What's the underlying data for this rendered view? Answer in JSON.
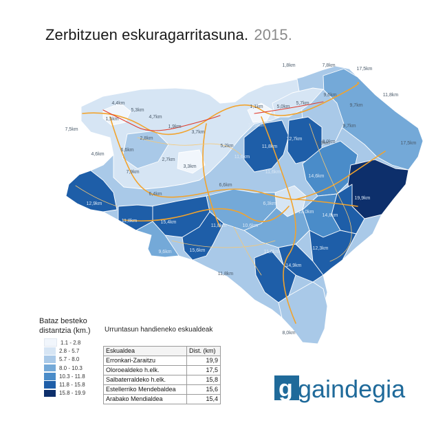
{
  "title": {
    "main": "Zerbitzuen eskuragarritasuna.",
    "year": "2015."
  },
  "legend": {
    "title_line1": "Bataz besteko",
    "title_line2": "distantzia (km.)",
    "items": [
      {
        "range": "1.1 - 2.8",
        "color": "#f1f6fc"
      },
      {
        "range": "2.8 - 5.7",
        "color": "#d6e5f4"
      },
      {
        "range": "5.7 - 8.0",
        "color": "#a9c9e8"
      },
      {
        "range": "8.0 - 10.3",
        "color": "#74a9d8"
      },
      {
        "range": "10.3 - 11.8",
        "color": "#4a8cc9"
      },
      {
        "range": "11.8 - 15.8",
        "color": "#1e5ea8"
      },
      {
        "range": "15.8 - 19.9",
        "color": "#0d2f6b"
      }
    ]
  },
  "table": {
    "title": "Urruntasun handieneko eskualdeak",
    "headers": [
      "Eskualdea",
      "Dist. (km)"
    ],
    "rows": [
      {
        "name": "Erronkari-Zaraitzu",
        "value": "19,9"
      },
      {
        "name": "Oloroealdeko h.elk.",
        "value": "17,5"
      },
      {
        "name": "Salbaterraldeko h.elk.",
        "value": "15,8"
      },
      {
        "name": "Estellerriko Mendebaldea",
        "value": "15,6"
      },
      {
        "name": "Arabako Mendialdea",
        "value": "15,4"
      }
    ]
  },
  "logo": {
    "text": "gaindegia",
    "color": "#1f6a9a"
  },
  "map_labels": [
    "1,8km",
    "7,8km",
    "17,5km",
    "11,8km",
    "9,6km",
    "9,7km",
    "9,7km",
    "8,9km",
    "17,5km",
    "5,7km",
    "5,0km",
    "1,1km",
    "4,4km",
    "5,3km",
    "4,7km",
    "1,9km",
    "3,7km",
    "5,2km",
    "1,5km",
    "7,5km",
    "2,8km",
    "6,6km",
    "4,6km",
    "2,7km",
    "3,3km",
    "7,9km",
    "10,6km",
    "11,8km",
    "12,7km",
    "11,6km",
    "8,0km",
    "11,6km",
    "14,6km",
    "19,9km",
    "6,6km",
    "6,4km",
    "6,3km",
    "12,9km",
    "14,8km",
    "13,0km",
    "11,8km",
    "15,4km",
    "11,8km",
    "10,6km",
    "9,6km",
    "15,6km",
    "11,8km",
    "12,3km",
    "11,8km",
    "14,9km",
    "8,0km"
  ]
}
